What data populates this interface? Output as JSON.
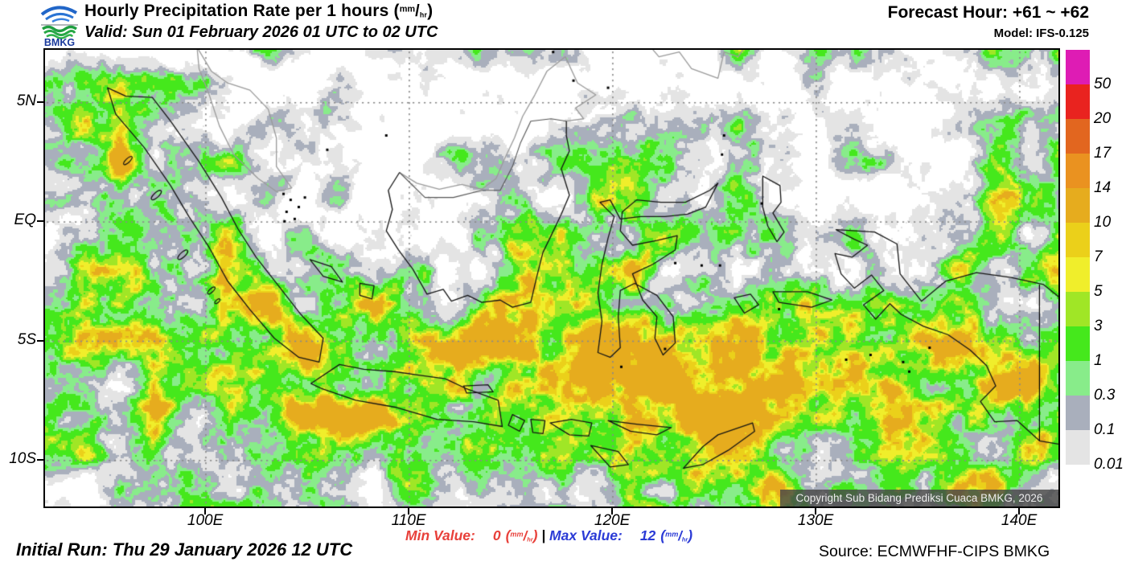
{
  "header": {
    "logo_text": "BMKG",
    "title_prefix": "Hourly Precipitation Rate per 1 hours (",
    "title_close": ")",
    "valid_line": "Valid: Sun 01 February 2026 01 UTC to 02 UTC",
    "forecast_hour": "Forecast Hour: +61 ~ +62",
    "model": "Model: IFS-0.125"
  },
  "units": {
    "num": "mm",
    "slash": "/",
    "den": "hr"
  },
  "map": {
    "lat_labels": [
      "5N",
      "EQ",
      "5S",
      "10S"
    ],
    "lon_labels": [
      "100E",
      "110E",
      "120E",
      "130E",
      "140E"
    ],
    "copyright": "Copyright Sub Bidang Prediksi Cuaca BMKG, 2026",
    "domestic_coast_color": "#141414",
    "foreign_coast_color": "#9a9a9a"
  },
  "colorbar": {
    "labels": [
      "50",
      "20",
      "17",
      "14",
      "10",
      "7",
      "5",
      "3",
      "1",
      "0.3",
      "0.1",
      "0.01"
    ],
    "colors": [
      "#DE1CB4",
      "#E9231F",
      "#E2661F",
      "#EA9220",
      "#E6AC1E",
      "#EBD01A",
      "#F0EE2B",
      "#A0E626",
      "#45E81C",
      "#88EC8A",
      "#A9AFBC",
      "#E4E4E4"
    ]
  },
  "footer": {
    "initial_run": "Initial Run: Thu 29 January 2026 12 UTC",
    "min_label": "Min Value:",
    "min_value": "0",
    "separator": "|",
    "max_label": "Max Value:",
    "max_value": "12",
    "source": "Source: ECMWFHF-CIPS BMKG",
    "min_color": "#E8403A",
    "max_color": "#2B3BD6"
  }
}
